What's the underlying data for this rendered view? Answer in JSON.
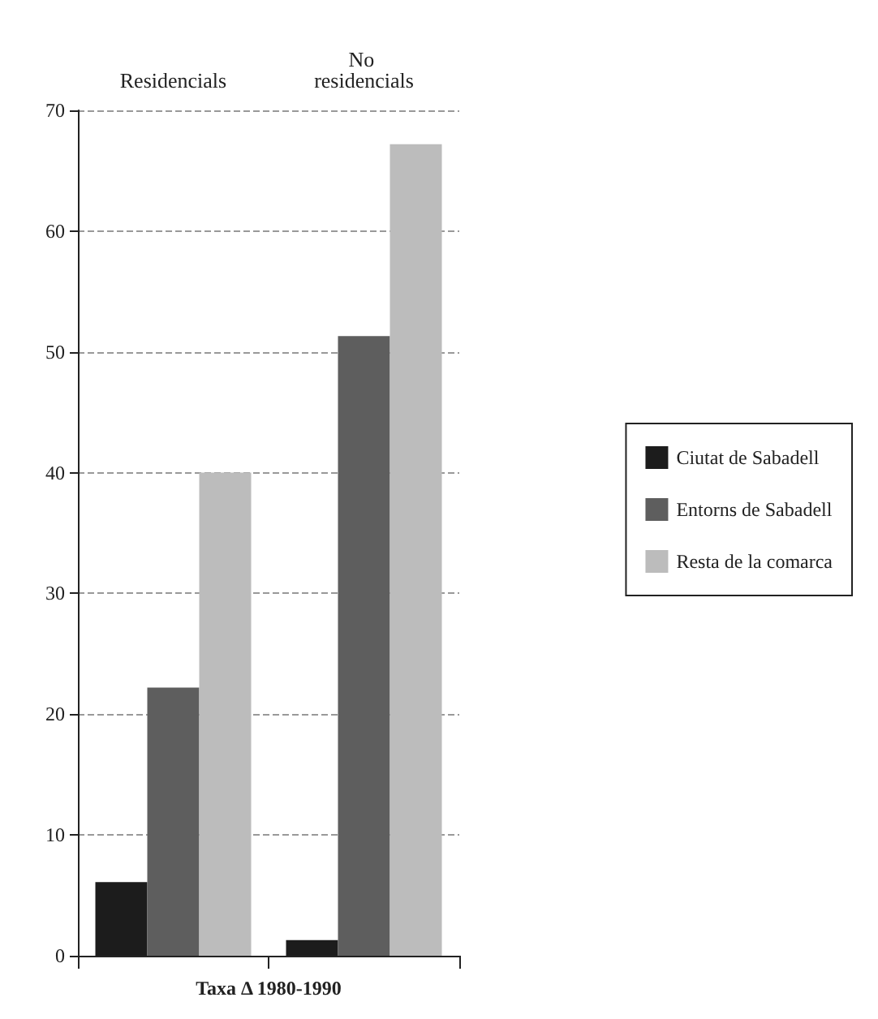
{
  "chart_data": {
    "type": "bar",
    "categories": [
      "Residencials",
      "No residencials"
    ],
    "xlabel": "Taxa Δ 1980-1990",
    "series": [
      {
        "name": "Ciutat de Sabadell",
        "color": "#1c1c1c",
        "values": [
          6.1,
          1.3
        ]
      },
      {
        "name": "Entorns de Sabadell",
        "color": "#5e5e5e",
        "values": [
          22.2,
          51.3
        ]
      },
      {
        "name": "Resta de la comarca",
        "color": "#bcbcbc",
        "values": [
          40,
          67.2
        ]
      }
    ],
    "ylim": [
      0,
      70
    ],
    "yticks": [
      0,
      10,
      20,
      30,
      40,
      50,
      60,
      70
    ],
    "grid": "y",
    "legend": "right"
  }
}
